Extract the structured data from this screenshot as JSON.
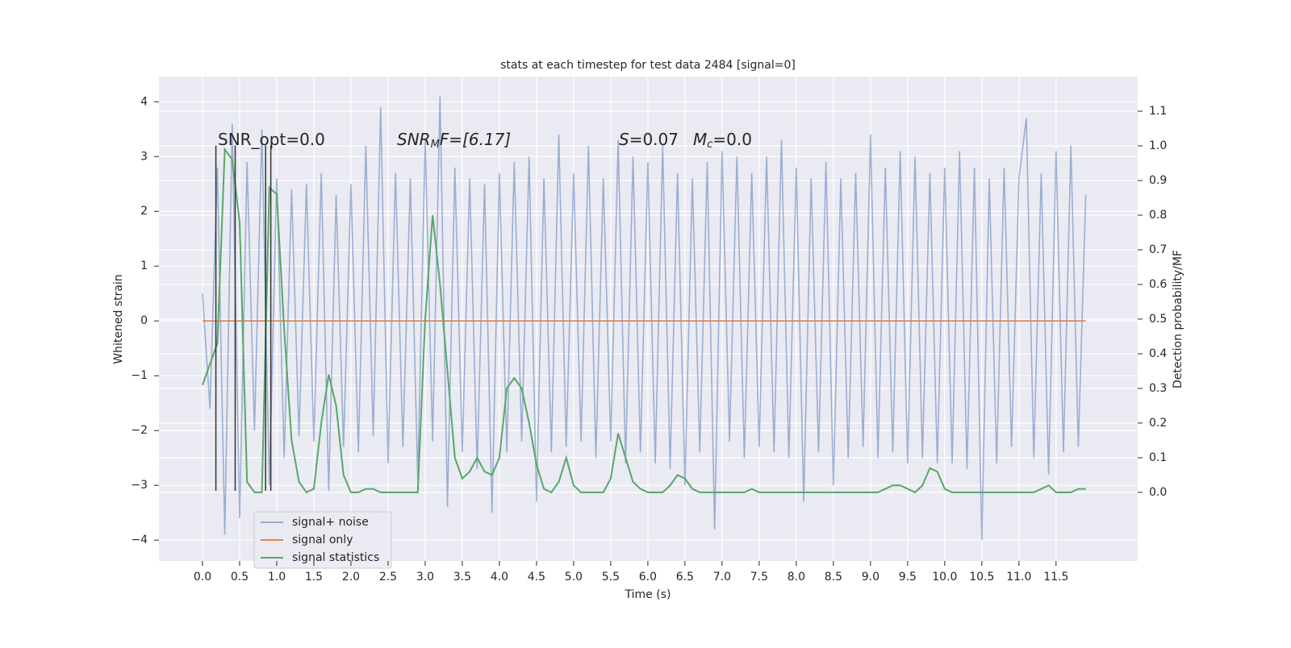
{
  "chart_data": {
    "type": "line",
    "title": "stats at each timestep for test data 2484 [signal=0]",
    "xlabel": "Time (s)",
    "ylabel": "Whitened strain",
    "y2label": "Detection probability/MF",
    "x": [
      0.0,
      0.1,
      0.2,
      0.3,
      0.4,
      0.5,
      0.6,
      0.7,
      0.8,
      0.9,
      1.0,
      1.1,
      1.2,
      1.3,
      1.4,
      1.5,
      1.6,
      1.7,
      1.8,
      1.9,
      2.0,
      2.1,
      2.2,
      2.3,
      2.4,
      2.5,
      2.6,
      2.7,
      2.8,
      2.9,
      3.0,
      3.1,
      3.2,
      3.3,
      3.4,
      3.5,
      3.6,
      3.7,
      3.8,
      3.9,
      4.0,
      4.1,
      4.2,
      4.3,
      4.4,
      4.5,
      4.6,
      4.7,
      4.8,
      4.9,
      5.0,
      5.1,
      5.2,
      5.3,
      5.4,
      5.5,
      5.6,
      5.7,
      5.8,
      5.9,
      6.0,
      6.1,
      6.2,
      6.3,
      6.4,
      6.5,
      6.6,
      6.7,
      6.8,
      6.9,
      7.0,
      7.1,
      7.2,
      7.3,
      7.4,
      7.5,
      7.6,
      7.7,
      7.8,
      7.9,
      8.0,
      8.1,
      8.2,
      8.3,
      8.4,
      8.5,
      8.6,
      8.7,
      8.8,
      8.9,
      9.0,
      9.1,
      9.2,
      9.3,
      9.4,
      9.5,
      9.6,
      9.7,
      9.8,
      9.9,
      10.0,
      10.1,
      10.2,
      10.3,
      10.4,
      10.5,
      10.6,
      10.7,
      10.8,
      10.9,
      11.0,
      11.1,
      11.2,
      11.3,
      11.4,
      11.5,
      11.6,
      11.7,
      11.8,
      11.9
    ],
    "series": [
      {
        "name": "signal+ noise",
        "color": "#4c72b0",
        "opacity": 0.5,
        "axis": "y",
        "values": [
          0.5,
          -1.6,
          2.8,
          -3.9,
          3.6,
          -3.6,
          2.9,
          -2.0,
          3.5,
          -3.0,
          2.6,
          -2.5,
          2.4,
          -2.1,
          2.5,
          -2.2,
          2.7,
          -3.1,
          2.3,
          -2.3,
          2.5,
          -2.4,
          3.2,
          -2.1,
          3.9,
          -2.6,
          2.7,
          -2.3,
          2.6,
          -2.9,
          3.3,
          -2.2,
          4.1,
          -3.4,
          2.8,
          -2.4,
          2.6,
          -2.7,
          2.5,
          -3.5,
          2.7,
          -2.4,
          2.9,
          -2.2,
          3.0,
          -3.3,
          2.6,
          -2.4,
          3.4,
          -2.3,
          2.7,
          -2.2,
          3.2,
          -2.5,
          2.6,
          -2.2,
          3.3,
          -2.6,
          3.0,
          -2.4,
          2.9,
          -2.6,
          3.2,
          -2.7,
          2.7,
          -3.0,
          2.6,
          -2.4,
          2.9,
          -3.8,
          3.1,
          -2.2,
          3.0,
          -2.5,
          2.7,
          -2.3,
          3.0,
          -2.4,
          3.3,
          -2.5,
          2.8,
          -3.3,
          2.6,
          -2.4,
          2.9,
          -3.0,
          2.6,
          -2.5,
          2.7,
          -2.3,
          3.4,
          -2.5,
          2.8,
          -2.4,
          3.1,
          -2.6,
          3.0,
          -2.5,
          2.7,
          -2.6,
          2.8,
          -2.6,
          3.1,
          -2.7,
          2.8,
          -4.0,
          2.6,
          -2.6,
          2.8,
          -2.3,
          2.6,
          3.7,
          -2.5,
          2.7,
          -2.8,
          3.1,
          -2.4,
          3.2,
          -2.3,
          2.3
        ]
      },
      {
        "name": "signal only",
        "color": "#dd8452",
        "opacity": 1,
        "axis": "y",
        "values": [
          0,
          0,
          0,
          0,
          0,
          0,
          0,
          0,
          0,
          0,
          0,
          0,
          0,
          0,
          0,
          0,
          0,
          0,
          0,
          0,
          0,
          0,
          0,
          0,
          0,
          0,
          0,
          0,
          0,
          0,
          0,
          0,
          0,
          0,
          0,
          0,
          0,
          0,
          0,
          0,
          0,
          0,
          0,
          0,
          0,
          0,
          0,
          0,
          0,
          0,
          0,
          0,
          0,
          0,
          0,
          0,
          0,
          0,
          0,
          0,
          0,
          0,
          0,
          0,
          0,
          0,
          0,
          0,
          0,
          0,
          0,
          0,
          0,
          0,
          0,
          0,
          0,
          0,
          0,
          0,
          0,
          0,
          0,
          0,
          0,
          0,
          0,
          0,
          0,
          0,
          0,
          0,
          0,
          0,
          0,
          0,
          0,
          0,
          0,
          0,
          0,
          0,
          0,
          0,
          0,
          0,
          0,
          0,
          0,
          0,
          0,
          0,
          0,
          0,
          0,
          0,
          0,
          0,
          0,
          0
        ]
      },
      {
        "name": "signal statistics",
        "color": "#55a868",
        "opacity": 1,
        "axis": "y2",
        "values": [
          0.31,
          0.37,
          0.43,
          0.99,
          0.96,
          0.78,
          0.03,
          0,
          0,
          0.88,
          0.86,
          0.47,
          0.15,
          0.03,
          0,
          0.01,
          0.2,
          0.34,
          0.25,
          0.05,
          0,
          0,
          0.01,
          0.01,
          0,
          0,
          0,
          0,
          0,
          0,
          0.5,
          0.8,
          0.6,
          0.35,
          0.1,
          0.04,
          0.06,
          0.1,
          0.06,
          0.05,
          0.1,
          0.3,
          0.33,
          0.3,
          0.2,
          0.08,
          0.01,
          0,
          0.03,
          0.1,
          0.02,
          0,
          0,
          0,
          0,
          0.04,
          0.17,
          0.1,
          0.03,
          0.01,
          0,
          0,
          0,
          0.02,
          0.05,
          0.04,
          0.01,
          0,
          0,
          0,
          0,
          0,
          0,
          0,
          0.01,
          0,
          0,
          0,
          0,
          0,
          0,
          0,
          0,
          0,
          0,
          0,
          0,
          0,
          0,
          0,
          0,
          0,
          0.01,
          0.02,
          0.02,
          0.01,
          0,
          0.02,
          0.07,
          0.06,
          0.01,
          0,
          0,
          0,
          0,
          0,
          0,
          0,
          0,
          0,
          0,
          0,
          0,
          0.01,
          0.02,
          0,
          0,
          0,
          0.01,
          0.01
        ]
      }
    ],
    "vlines": {
      "x": [
        0.18,
        0.44,
        0.85,
        0.92
      ],
      "ymin": -3.1,
      "ymax": 3.2,
      "color": "#333333"
    },
    "annotations": [
      {
        "parts": [
          "SNR_opt=0.0"
        ]
      },
      {
        "parts": [
          "SNR",
          "M",
          "F=[6.17]"
        ]
      },
      {
        "parts": [
          "S",
          "=0.07"
        ]
      },
      {
        "parts": [
          "M",
          "c",
          "=0.0"
        ]
      }
    ],
    "xlim": [
      -0.587,
      12.6
    ],
    "ylim": [
      -4.38,
      4.46
    ],
    "y2lim": [
      -0.198,
      1.2
    ],
    "xticks": [
      {
        "value": 0,
        "label": "0.0"
      },
      {
        "value": 0.5,
        "label": "0.5"
      },
      {
        "value": 1,
        "label": "1.0"
      },
      {
        "value": 1.5,
        "label": "1.5"
      },
      {
        "value": 2,
        "label": "2.0"
      },
      {
        "value": 2.5,
        "label": "2.5"
      },
      {
        "value": 3,
        "label": "3.0"
      },
      {
        "value": 3.5,
        "label": "3.5"
      },
      {
        "value": 4,
        "label": "4.0"
      },
      {
        "value": 4.5,
        "label": "4.5"
      },
      {
        "value": 5,
        "label": "5.0"
      },
      {
        "value": 5.5,
        "label": "5.5"
      },
      {
        "value": 6,
        "label": "6.0"
      },
      {
        "value": 6.5,
        "label": "6.5"
      },
      {
        "value": 7,
        "label": "7.0"
      },
      {
        "value": 7.5,
        "label": "7.5"
      },
      {
        "value": 8,
        "label": "8.0"
      },
      {
        "value": 8.5,
        "label": "8.5"
      },
      {
        "value": 9,
        "label": "9.0"
      },
      {
        "value": 9.5,
        "label": "9.5"
      },
      {
        "value": 10,
        "label": "10.0"
      },
      {
        "value": 10.5,
        "label": "10.5"
      },
      {
        "value": 11,
        "label": "11.0"
      },
      {
        "value": 11.5,
        "label": "11.5"
      }
    ],
    "yticks": [
      {
        "value": -4,
        "label": "−4"
      },
      {
        "value": -3,
        "label": "−3"
      },
      {
        "value": -2,
        "label": "−2"
      },
      {
        "value": -1,
        "label": "−1"
      },
      0,
      1,
      2,
      3,
      4
    ],
    "y2ticks": [
      {
        "value": 0,
        "label": "0.0"
      },
      {
        "value": 0.1,
        "label": "0.1"
      },
      {
        "value": 0.2,
        "label": "0.2"
      },
      {
        "value": 0.3,
        "label": "0.3"
      },
      {
        "value": 0.4,
        "label": "0.4"
      },
      {
        "value": 0.5,
        "label": "0.5"
      },
      {
        "value": 0.6,
        "label": "0.6"
      },
      {
        "value": 0.7,
        "label": "0.7"
      },
      {
        "value": 0.8,
        "label": "0.8"
      },
      {
        "value": 0.9,
        "label": "0.9"
      },
      {
        "value": 1,
        "label": "1.0"
      },
      {
        "value": 1.1,
        "label": "1.1"
      }
    ],
    "grid": true,
    "legend": "lower left"
  }
}
